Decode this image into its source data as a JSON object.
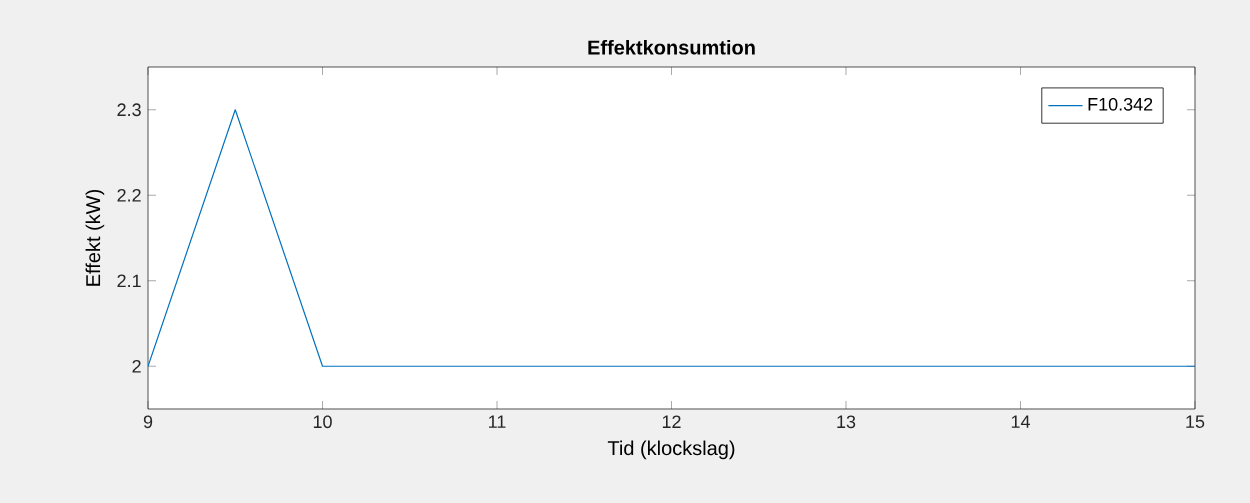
{
  "chart_data": {
    "type": "line",
    "title": "Effektkonsumtion",
    "xlabel": "Tid (klockslag)",
    "ylabel": "Effekt (kW)",
    "x": [
      9,
      9.5,
      10,
      15
    ],
    "series": [
      {
        "name": "F10.342",
        "color": "#0072bd",
        "values": [
          2,
          2.3,
          2,
          2
        ]
      }
    ],
    "xlim": [
      9,
      15
    ],
    "xticks": [
      9,
      10,
      11,
      12,
      13,
      14,
      15
    ],
    "ylim": [
      1.95,
      2.35
    ],
    "yticks": [
      {
        "value": 2,
        "label": "2"
      },
      2.1,
      2.2,
      2.3
    ],
    "grid": false,
    "legend": "top right",
    "marker": "none"
  }
}
